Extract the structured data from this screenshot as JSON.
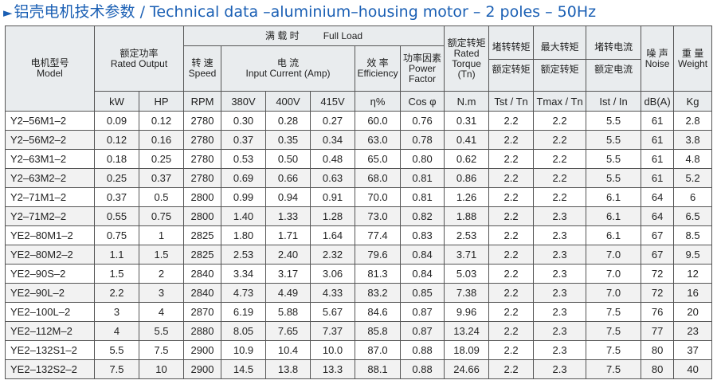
{
  "title": "铝壳电机技术参数 / Technical data –aluminium–housing motor – 2 poles – 50Hz",
  "header": {
    "model_cn": "电机型号",
    "model_en": "Model",
    "output_cn": "额定功率",
    "output_en": "Rated Output",
    "full_load_cn": "满 载 时",
    "full_load_en": "Full Load",
    "speed_cn": "转 速",
    "speed_en": "Speed",
    "current_cn": "电 流",
    "current_en": "Input  Current (Amp)",
    "eff_cn": "效 率",
    "eff_en": "Efficiency",
    "pf_cn": "功率因素",
    "pf_en1": "Power",
    "pf_en2": "Factor",
    "torque_cn": "额定转矩",
    "torque_en1": "Rated",
    "torque_en2": "Torque",
    "torque_en3": "(Tn)",
    "tst_cn1": "堵转转矩",
    "tst_cn2": "额定转矩",
    "tmax_cn1": "最大转矩",
    "tmax_cn2": "额定转矩",
    "ist_cn1": "堵转电流",
    "ist_cn2": "额定电流",
    "noise_cn": "噪 声",
    "noise_en": "Noise",
    "weight_cn": "重 量",
    "weight_en": "Weight",
    "units": [
      "kW",
      "HP",
      "RPM",
      "380V",
      "400V",
      "415V",
      "η%",
      "Cos φ",
      "N.m",
      "Tst / Tn",
      "Tmax / Tn",
      "Ist / In",
      "dB(A)",
      "Kg"
    ]
  },
  "rows": [
    [
      "Y2–56M1–2",
      "0.09",
      "0.12",
      "2780",
      "0.30",
      "0.28",
      "0.27",
      "60.0",
      "0.76",
      "0.31",
      "2.2",
      "2.2",
      "5.5",
      "61",
      "2.8"
    ],
    [
      "Y2–56M2–2",
      "0.12",
      "0.16",
      "2780",
      "0.37",
      "0.35",
      "0.34",
      "63.0",
      "0.78",
      "0.41",
      "2.2",
      "2.2",
      "5.5",
      "61",
      "3.8"
    ],
    [
      "Y2–63M1–2",
      "0.18",
      "0.25",
      "2780",
      "0.53",
      "0.50",
      "0.48",
      "65.0",
      "0.80",
      "0.62",
      "2.2",
      "2.2",
      "5.5",
      "61",
      "4.8"
    ],
    [
      "Y2–63M2–2",
      "0.25",
      "0.37",
      "2780",
      "0.69",
      "0.66",
      "0.63",
      "68.0",
      "0.81",
      "0.86",
      "2.2",
      "2.2",
      "5.5",
      "61",
      "5.2"
    ],
    [
      "Y2–71M1–2",
      "0.37",
      "0.5",
      "2800",
      "0.99",
      "0.94",
      "0.91",
      "70.0",
      "0.81",
      "1.26",
      "2.2",
      "2.2",
      "6.1",
      "64",
      "6"
    ],
    [
      "Y2–71M2–2",
      "0.55",
      "0.75",
      "2800",
      "1.40",
      "1.33",
      "1.28",
      "73.0",
      "0.82",
      "1.88",
      "2.2",
      "2.3",
      "6.1",
      "64",
      "6.5"
    ],
    [
      "YE2–80M1–2",
      "0.75",
      "1",
      "2825",
      "1.80",
      "1.71",
      "1.64",
      "77.4",
      "0.83",
      "2.53",
      "2.2",
      "2.3",
      "6.1",
      "67",
      "8.5"
    ],
    [
      "YE2–80M2–2",
      "1.1",
      "1.5",
      "2825",
      "2.53",
      "2.40",
      "2.32",
      "79.6",
      "0.84",
      "3.71",
      "2.2",
      "2.3",
      "7.0",
      "67",
      "9.5"
    ],
    [
      "YE2–90S–2",
      "1.5",
      "2",
      "2840",
      "3.34",
      "3.17",
      "3.06",
      "81.3",
      "0.84",
      "5.03",
      "2.2",
      "2.3",
      "7.0",
      "72",
      "12"
    ],
    [
      "YE2–90L–2",
      "2.2",
      "3",
      "2840",
      "4.73",
      "4.49",
      "4.33",
      "83.2",
      "0.85",
      "7.38",
      "2.2",
      "2.3",
      "7.0",
      "72",
      "16"
    ],
    [
      "YE2–100L–2",
      "3",
      "4",
      "2870",
      "6.19",
      "5.88",
      "5.67",
      "84.6",
      "0.87",
      "9.96",
      "2.2",
      "2.3",
      "7.5",
      "76",
      "20"
    ],
    [
      "YE2–112M–2",
      "4",
      "5.5",
      "2880",
      "8.05",
      "7.65",
      "7.37",
      "85.8",
      "0.87",
      "13.24",
      "2.2",
      "2.3",
      "7.5",
      "77",
      "23"
    ],
    [
      "YE2–132S1–2",
      "5.5",
      "7.5",
      "2900",
      "10.9",
      "10.4",
      "10.0",
      "87.0",
      "0.88",
      "18.09",
      "2.2",
      "2.3",
      "7.5",
      "80",
      "37"
    ],
    [
      "YE2–132S2–2",
      "7.5",
      "10",
      "2900",
      "14.5",
      "13.8",
      "13.3",
      "88.1",
      "0.88",
      "24.66",
      "2.2",
      "2.3",
      "7.5",
      "80",
      "40"
    ]
  ]
}
